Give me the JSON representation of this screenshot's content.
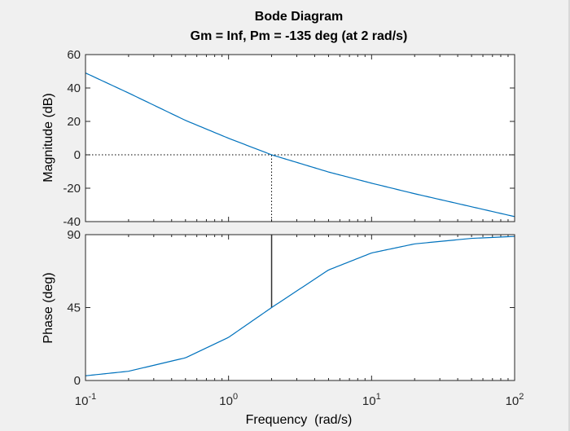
{
  "chart_data": [
    {
      "type": "line",
      "panel": "magnitude",
      "title": "Bode Diagram",
      "subtitle": "Gm = Inf,  Pm = -135 deg (at 2 rad/s)",
      "ylabel": "Magnitude (dB)",
      "xlabel": "",
      "xscale": "log",
      "xlim": [
        0.1,
        100
      ],
      "ylim": [
        -40,
        60
      ],
      "yticks": [
        "60",
        "40",
        "20",
        "0",
        "-20",
        "-40"
      ],
      "ytick_values": [
        60,
        40,
        20,
        0,
        -20,
        -40
      ],
      "grid": false,
      "series": [
        {
          "color": "#0072bd",
          "x": [
            0.1,
            0.2,
            0.5,
            1,
            2,
            5,
            10,
            20,
            50,
            100
          ],
          "y": [
            49,
            37,
            20.6,
            9.9,
            0,
            -10.3,
            -17,
            -23.3,
            -31.1,
            -37
          ]
        }
      ],
      "annotations": [
        {
          "kind": "dotted-hline",
          "y": 0
        },
        {
          "kind": "dotted-vline",
          "x": 2,
          "y_from": -40,
          "y_to": 0
        }
      ]
    },
    {
      "type": "line",
      "panel": "phase",
      "ylabel": "Phase (deg)",
      "xlabel": "Frequency  (rad/s)",
      "xscale": "log",
      "xlim": [
        0.1,
        100
      ],
      "ylim": [
        0,
        90
      ],
      "yticks": [
        "90",
        "45",
        "0"
      ],
      "ytick_values": [
        90,
        45,
        0
      ],
      "xtick_values": [
        0.1,
        1,
        10,
        100
      ],
      "xticks": [
        {
          "base": "10",
          "exp": "-1"
        },
        {
          "base": "10",
          "exp": "0"
        },
        {
          "base": "10",
          "exp": "1"
        },
        {
          "base": "10",
          "exp": "2"
        }
      ],
      "grid": false,
      "series": [
        {
          "color": "#0072bd",
          "x": [
            0.1,
            0.2,
            0.5,
            1,
            2,
            5,
            10,
            20,
            50,
            100
          ],
          "y": [
            2.9,
            5.7,
            14,
            26.6,
            45,
            68.2,
            78.7,
            84.3,
            87.7,
            88.9
          ]
        }
      ],
      "annotations": [
        {
          "kind": "solid-vline",
          "x": 2,
          "y_from": 45,
          "y_to": 90
        }
      ]
    }
  ]
}
